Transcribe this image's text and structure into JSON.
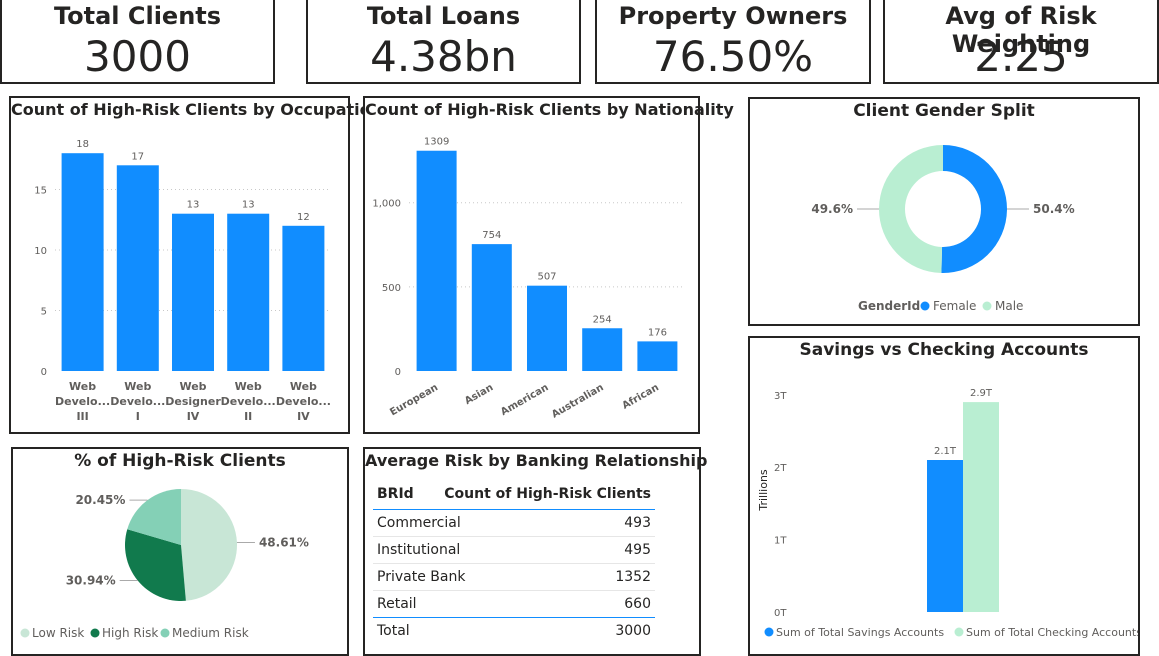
{
  "kpis": [
    {
      "title": "Total Clients",
      "value": "3000"
    },
    {
      "title": "Total Loans",
      "value": "4.38bn"
    },
    {
      "title": "Property Owners",
      "value": "76.50%"
    },
    {
      "title": "Avg of Risk Weighting",
      "value": "2.25"
    }
  ],
  "colors": {
    "blue": "#118dff",
    "mint": "#b9eed2",
    "lowRisk": "#c8e6d6",
    "highRisk": "#117a4d",
    "mediumRisk": "#84d0b6"
  },
  "occupation": {
    "title": "Count of High-Risk Clients by Occupation"
  },
  "nationality": {
    "title": "Count of High-Risk Clients by Nationality"
  },
  "gender": {
    "title": "Client Gender Split",
    "legend_title": "GenderId"
  },
  "savings": {
    "title": "Savings vs Checking Accounts"
  },
  "risk": {
    "title": "% of High-Risk Clients"
  },
  "banking": {
    "title": "Average Risk by Banking Relationship",
    "columns": [
      "BRId",
      "Count of High-Risk Clients"
    ],
    "rows": [
      [
        "Commercial",
        "493"
      ],
      [
        "Institutional",
        "495"
      ],
      [
        "Private Bank",
        "1352"
      ],
      [
        "Retail",
        "660"
      ]
    ],
    "total": [
      "Total",
      "3000"
    ]
  },
  "chart_data": [
    {
      "type": "bar",
      "title": "Count of High-Risk Clients by Occupation",
      "categories": [
        [
          "Web",
          "Develo...",
          "III"
        ],
        [
          "Web",
          "Develo...",
          "I"
        ],
        [
          "Web",
          "Designer",
          "IV"
        ],
        [
          "Web",
          "Develo...",
          "II"
        ],
        [
          "Web",
          "Develo...",
          "IV"
        ]
      ],
      "values": [
        18,
        17,
        13,
        13,
        12
      ],
      "labels": [
        "18",
        "17",
        "13",
        "13",
        "12"
      ],
      "ylim": [
        0,
        20
      ],
      "ticks": [
        0,
        5,
        10,
        15
      ],
      "tick_labels": [
        "0",
        "5",
        "10",
        "15"
      ],
      "grid": true
    },
    {
      "type": "bar",
      "title": "Count of High-Risk Clients by Nationality",
      "categories": [
        "European",
        "Asian",
        "American",
        "Australian",
        "African"
      ],
      "values": [
        1309,
        754,
        507,
        254,
        176
      ],
      "labels": [
        "1309",
        "754",
        "507",
        "254",
        "176"
      ],
      "ylim": [
        0,
        1450
      ],
      "ticks": [
        0,
        500,
        1000
      ],
      "tick_labels": [
        "0",
        "500",
        "1,000"
      ],
      "grid": true
    },
    {
      "type": "pie",
      "title": "Client Gender Split",
      "donut": true,
      "series": [
        {
          "name": "Female",
          "value": 50.4,
          "label": "50.4%"
        },
        {
          "name": "Male",
          "value": 49.6,
          "label": "49.6%"
        }
      ],
      "legend": "bottom"
    },
    {
      "type": "bar",
      "title": "Savings vs Checking Accounts",
      "ylabel": "Trillions",
      "series": [
        {
          "name": "Sum of Total Savings Accounts",
          "value": 2.1,
          "label": "2.1T"
        },
        {
          "name": "Sum of Total Checking Accounts",
          "value": 2.9,
          "label": "2.9T"
        }
      ],
      "ylim": [
        0,
        3.15
      ],
      "ticks": [
        0,
        1,
        2,
        3
      ],
      "tick_labels": [
        "0T",
        "1T",
        "2T",
        "3T"
      ],
      "legend": "bottom"
    },
    {
      "type": "pie",
      "title": "% of High-Risk Clients",
      "series": [
        {
          "name": "Low Risk",
          "value": 48.61,
          "label": "48.61%"
        },
        {
          "name": "High Risk",
          "value": 30.94,
          "label": "30.94%"
        },
        {
          "name": "Medium Risk",
          "value": 20.45,
          "label": "20.45%"
        }
      ],
      "legend": "bottom"
    }
  ]
}
